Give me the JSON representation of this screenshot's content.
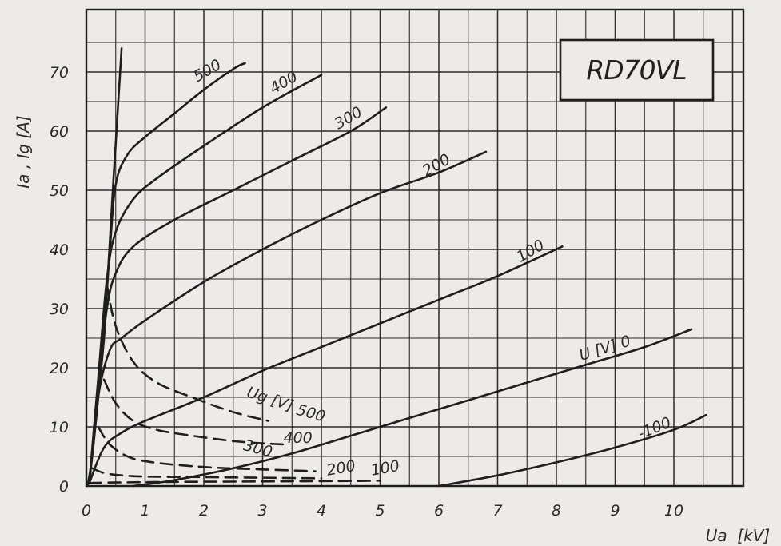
{
  "chart_data": {
    "type": "line",
    "title": "RD70VL",
    "xlabel": "Ua  [kV]",
    "ylabel": "Ia , Ig [A]",
    "xlim": [
      0,
      11
    ],
    "ylim": [
      0,
      80
    ],
    "x_ticks": [
      "0",
      "1",
      "2",
      "3",
      "4",
      "5",
      "6",
      "7",
      "8",
      "9",
      "10"
    ],
    "y_ticks": [
      "0",
      "10",
      "20",
      "30",
      "40",
      "50",
      "60",
      "70"
    ],
    "grid": true,
    "legend": "none",
    "ia_family_label": "U [V]",
    "ig_family_label": "Ug [V]",
    "series": [
      {
        "name": "500",
        "group": "Ia",
        "style": "solid",
        "label": "500",
        "label_at": [
          2.1,
          69.5
        ],
        "label_angle": -30,
        "x": [
          0.05,
          0.25,
          0.4,
          0.5,
          0.7,
          1.0,
          1.5,
          2.0,
          2.5,
          2.7
        ],
        "y": [
          0.5,
          20,
          40,
          51,
          56,
          59,
          63,
          67,
          70.5,
          71.5
        ]
      },
      {
        "name": "400",
        "group": "Ia",
        "style": "solid",
        "label": "400",
        "label_at": [
          3.4,
          67.5
        ],
        "label_angle": -30,
        "x": [
          0.05,
          0.2,
          0.35,
          0.5,
          0.8,
          1.2,
          2.0,
          3.0,
          4.0
        ],
        "y": [
          0.5,
          18,
          35,
          43,
          48.5,
          52,
          57.5,
          64,
          69.5
        ]
      },
      {
        "name": "300",
        "group": "Ia",
        "style": "solid",
        "label": "300",
        "label_at": [
          4.5,
          61.5
        ],
        "label_angle": -30,
        "x": [
          0.05,
          0.2,
          0.35,
          0.5,
          0.8,
          1.5,
          2.5,
          3.5,
          4.5,
          5.1
        ],
        "y": [
          0.5,
          17,
          30,
          36,
          40.5,
          45,
          50,
          55,
          60,
          64
        ]
      },
      {
        "name": "200",
        "group": "Ia",
        "style": "solid",
        "label": "200",
        "label_at": [
          6.0,
          53.5
        ],
        "label_angle": -30,
        "x": [
          0.05,
          0.2,
          0.4,
          0.6,
          1.0,
          2.0,
          3.0,
          4.0,
          5.0,
          6.0,
          6.8
        ],
        "y": [
          0.5,
          15,
          23,
          25,
          28,
          34.5,
          40,
          45,
          49.5,
          53,
          56.5
        ]
      },
      {
        "name": "100",
        "group": "Ia",
        "style": "solid",
        "label": "100",
        "label_at": [
          7.6,
          39
        ],
        "label_angle": -30,
        "x": [
          0.05,
          0.3,
          0.6,
          1.0,
          2.0,
          3.0,
          4.0,
          5.0,
          6.0,
          7.0,
          8.1
        ],
        "y": [
          0.5,
          6.5,
          9,
          11,
          15,
          19.5,
          23.5,
          27.5,
          31.5,
          35.5,
          40.5
        ]
      },
      {
        "name": "0",
        "group": "Ia",
        "style": "solid",
        "label": "U [V]  0",
        "label_at": [
          8.85,
          22.5
        ],
        "label_angle": -17,
        "x": [
          0.8,
          1.5,
          2.5,
          3.5,
          4.5,
          5.5,
          6.5,
          7.5,
          8.5,
          9.5,
          10.3
        ],
        "y": [
          0,
          1,
          3,
          5.5,
          8.5,
          11.5,
          14.5,
          17.5,
          20.5,
          23.5,
          26.5
        ]
      },
      {
        "name": "-100",
        "group": "Ia",
        "style": "solid",
        "label": "-100",
        "label_at": [
          9.7,
          9
        ],
        "label_angle": -22,
        "x": [
          6.0,
          7.0,
          8.0,
          9.0,
          10.0,
          10.55
        ],
        "y": [
          0,
          1.8,
          4,
          6.5,
          9.5,
          12
        ]
      },
      {
        "name": "Ug 500",
        "group": "Ig",
        "style": "dashed",
        "label": "500",
        "label_at": [
          3.8,
          11.5
        ],
        "label_angle": 15,
        "x": [
          0.35,
          0.5,
          0.8,
          1.2,
          1.8,
          2.5,
          3.1
        ],
        "y": [
          34,
          27,
          21,
          17.5,
          15,
          12.5,
          11
        ]
      },
      {
        "name": "Ug 400",
        "group": "Ig",
        "style": "dashed",
        "label": "400",
        "label_at": [
          3.6,
          7.3
        ],
        "label_angle": 0,
        "x": [
          0.3,
          0.5,
          0.8,
          1.2,
          1.8,
          2.6,
          3.4
        ],
        "y": [
          18,
          14,
          11,
          9.5,
          8.5,
          7.5,
          7
        ]
      },
      {
        "name": "Ug 300",
        "group": "Ig",
        "style": "dashed",
        "label": "300",
        "label_at": [
          2.9,
          5.5
        ],
        "label_angle": 15,
        "x": [
          0.2,
          0.4,
          0.7,
          1.0,
          1.5,
          2.2,
          3.0,
          3.9
        ],
        "y": [
          10,
          7,
          5,
          4.2,
          3.6,
          3.1,
          2.8,
          2.5
        ]
      },
      {
        "name": "Ug 200",
        "group": "Ig",
        "style": "dashed",
        "label": "200",
        "label_at": [
          4.35,
          2.2
        ],
        "label_angle": -10,
        "x": [
          0.1,
          0.3,
          0.6,
          1.0,
          2.0,
          3.0,
          4.0
        ],
        "y": [
          3,
          2.2,
          1.8,
          1.6,
          1.5,
          1.4,
          1.3
        ]
      },
      {
        "name": "Ug 100",
        "group": "Ig",
        "style": "dashed",
        "label": "100",
        "label_at": [
          5.1,
          2.2
        ],
        "label_angle": -10,
        "x": [
          0.05,
          0.5,
          1.5,
          2.5,
          3.5,
          4.5,
          5.0
        ],
        "y": [
          0.5,
          0.6,
          0.7,
          0.75,
          0.8,
          0.85,
          0.9
        ]
      },
      {
        "name": "Ug 0 (envelope)",
        "group": "Ig",
        "style": "solid",
        "label": "",
        "x": [
          0.02,
          0.1,
          0.2,
          0.3,
          0.38,
          0.45,
          0.5,
          0.55,
          0.6
        ],
        "y": [
          0,
          5,
          15,
          25,
          38,
          50,
          58,
          66,
          74
        ]
      }
    ]
  },
  "colors": {
    "background": "#ecebe8",
    "ink": "#1e1e1e",
    "grid": "#2b2b2b"
  }
}
